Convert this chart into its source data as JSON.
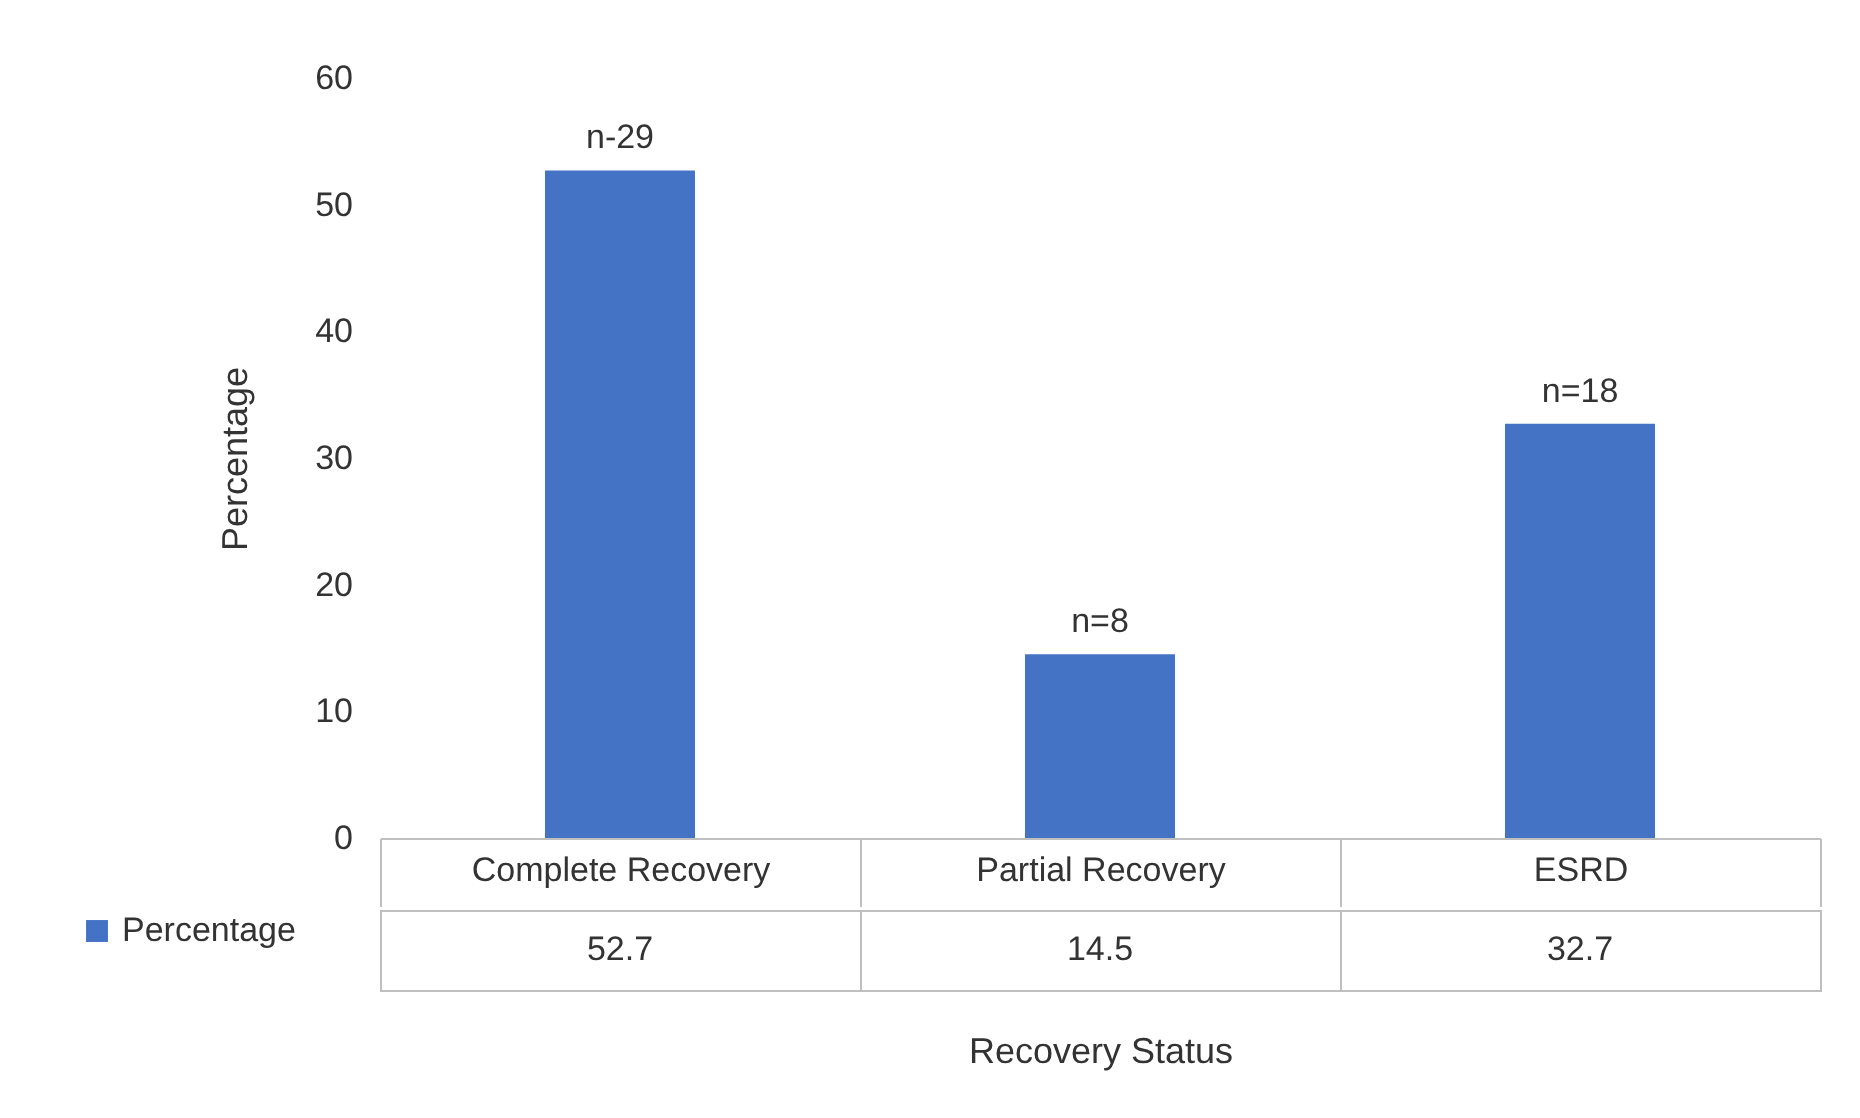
{
  "chart_data": {
    "type": "bar",
    "xlabel": "Recovery Status",
    "ylabel": "Percentage",
    "categories": [
      "Complete Recovery",
      "Partial Recovery",
      "ESRD"
    ],
    "series": [
      {
        "name": "Percentage",
        "color": "#4472c4",
        "values": [
          52.7,
          14.5,
          32.7
        ]
      }
    ],
    "ylim": [
      0,
      60
    ],
    "yticks": [
      0,
      10,
      20,
      30,
      40,
      50,
      60
    ],
    "grid": false,
    "data_labels": true,
    "legend": "bottom left",
    "annotations": [
      {
        "text": "n-29",
        "x": "Complete Recovery",
        "y": 52.7
      },
      {
        "text": "n=8",
        "x": "Partial Recovery",
        "y": 14.5
      },
      {
        "text": "n=18",
        "x": "ESRD",
        "y": 32.7
      }
    ]
  }
}
